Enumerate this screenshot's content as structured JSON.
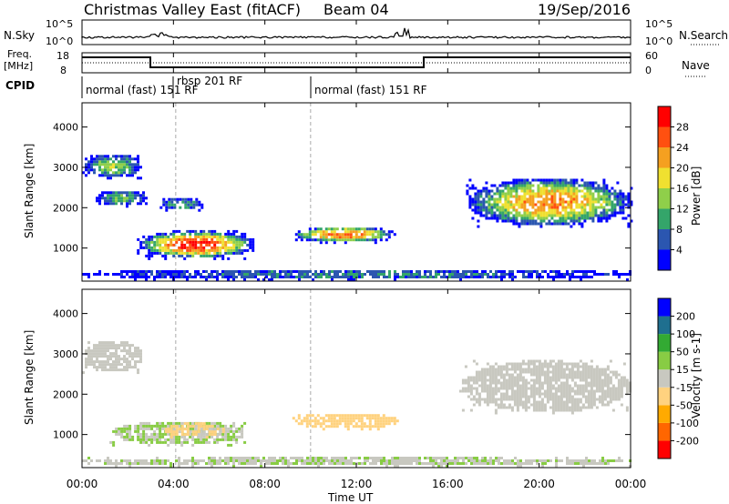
{
  "header": {
    "title": "Christmas Valley East (fitACF)",
    "beam": "Beam 04",
    "date": "19/Sep/2016"
  },
  "panels": {
    "nsky_label": "N.Sky",
    "nsky_ticks": [
      "10^5",
      "10^0"
    ],
    "nsearch_label": "N.Search",
    "nsearch_ticks": [
      "10^5",
      "10^0"
    ],
    "freq_label_1": "Freq.",
    "freq_label_2": "[MHz]",
    "freq_ticks": [
      "18",
      "8"
    ],
    "nave_label": "Nave",
    "nave_ticks": [
      "60",
      "0"
    ],
    "cpid_label": "CPID",
    "cpid_segments": [
      {
        "label": "normal (fast) 151 RF",
        "start": 0.0
      },
      {
        "label": "rbsp 201 RF",
        "start": 4.1
      },
      {
        "label": "normal (fast) 151 RF",
        "start": 10.0
      }
    ]
  },
  "chart_data": [
    {
      "type": "heatmap",
      "title": "",
      "xlabel": "Time UT",
      "ylabel": "Slant Range [km]",
      "xlim": [
        0,
        24
      ],
      "ylim": [
        180,
        4600
      ],
      "x_ticks": [
        "00:00",
        "04:00",
        "08:00",
        "12:00",
        "16:00",
        "20:00",
        "00:00"
      ],
      "y_ticks": [
        "1000",
        "2000",
        "3000",
        "4000"
      ],
      "colorbar": {
        "label": "Power [dB]",
        "ticks": [
          "4",
          "8",
          "12",
          "16",
          "20",
          "24",
          "28"
        ],
        "range": [
          0,
          30
        ],
        "colors": [
          "#0000ff",
          "#2b56b0",
          "#34a56a",
          "#8fcf4a",
          "#f0e030",
          "#f5a020",
          "#ff5010",
          "#ff0000"
        ]
      },
      "regions": [
        {
          "t0": 0.0,
          "t1": 2.6,
          "r0": 2700,
          "r1": 3300,
          "power": 14
        },
        {
          "t0": 0.6,
          "t1": 2.8,
          "r0": 2000,
          "r1": 2400,
          "power": 12
        },
        {
          "t0": 2.4,
          "t1": 7.5,
          "r0": 700,
          "r1": 1400,
          "power": 27
        },
        {
          "t0": 3.4,
          "t1": 5.2,
          "r0": 1900,
          "r1": 2200,
          "power": 10
        },
        {
          "t0": 9.2,
          "t1": 13.7,
          "r0": 1100,
          "r1": 1500,
          "power": 24
        },
        {
          "t0": 16.8,
          "t1": 24.0,
          "r0": 1500,
          "r1": 2700,
          "power": 22
        },
        {
          "t0": 0.0,
          "t1": 24.0,
          "r0": 180,
          "r1": 450,
          "power": 8
        }
      ]
    },
    {
      "type": "heatmap",
      "title": "",
      "xlabel": "Time UT",
      "ylabel": "Slant Range [km]",
      "xlim": [
        0,
        24
      ],
      "ylim": [
        180,
        4600
      ],
      "x_ticks": [
        "00:00",
        "04:00",
        "08:00",
        "12:00",
        "16:00",
        "20:00",
        "00:00"
      ],
      "y_ticks": [
        "1000",
        "2000",
        "3000",
        "4000"
      ],
      "colorbar": {
        "label": "Velocity [m s-1]",
        "ticks": [
          "200",
          "100",
          "50",
          "15",
          "-15",
          "-50",
          "-100",
          "-200"
        ],
        "range": [
          -250,
          250
        ],
        "colors": [
          "#ff0000",
          "#ff6600",
          "#ffaa00",
          "#ffd27f",
          "#c8c8c0",
          "#88cc44",
          "#33aa33",
          "#1f6f8f",
          "#0000ff"
        ]
      },
      "regions": [
        {
          "t0": 0.0,
          "t1": 2.6,
          "r0": 2500,
          "r1": 3300,
          "velocity": 0
        },
        {
          "t0": 1.2,
          "t1": 7.2,
          "r0": 700,
          "r1": 1300,
          "velocity": 30
        },
        {
          "t0": 3.5,
          "t1": 6.2,
          "r0": 900,
          "r1": 1250,
          "velocity": -40
        },
        {
          "t0": 9.2,
          "t1": 13.8,
          "r0": 1100,
          "r1": 1500,
          "velocity": -60
        },
        {
          "t0": 16.5,
          "t1": 24.0,
          "r0": 1500,
          "r1": 2800,
          "velocity": 0
        },
        {
          "t0": 0.0,
          "t1": 24.0,
          "r0": 180,
          "r1": 400,
          "velocity": 20
        }
      ]
    }
  ]
}
